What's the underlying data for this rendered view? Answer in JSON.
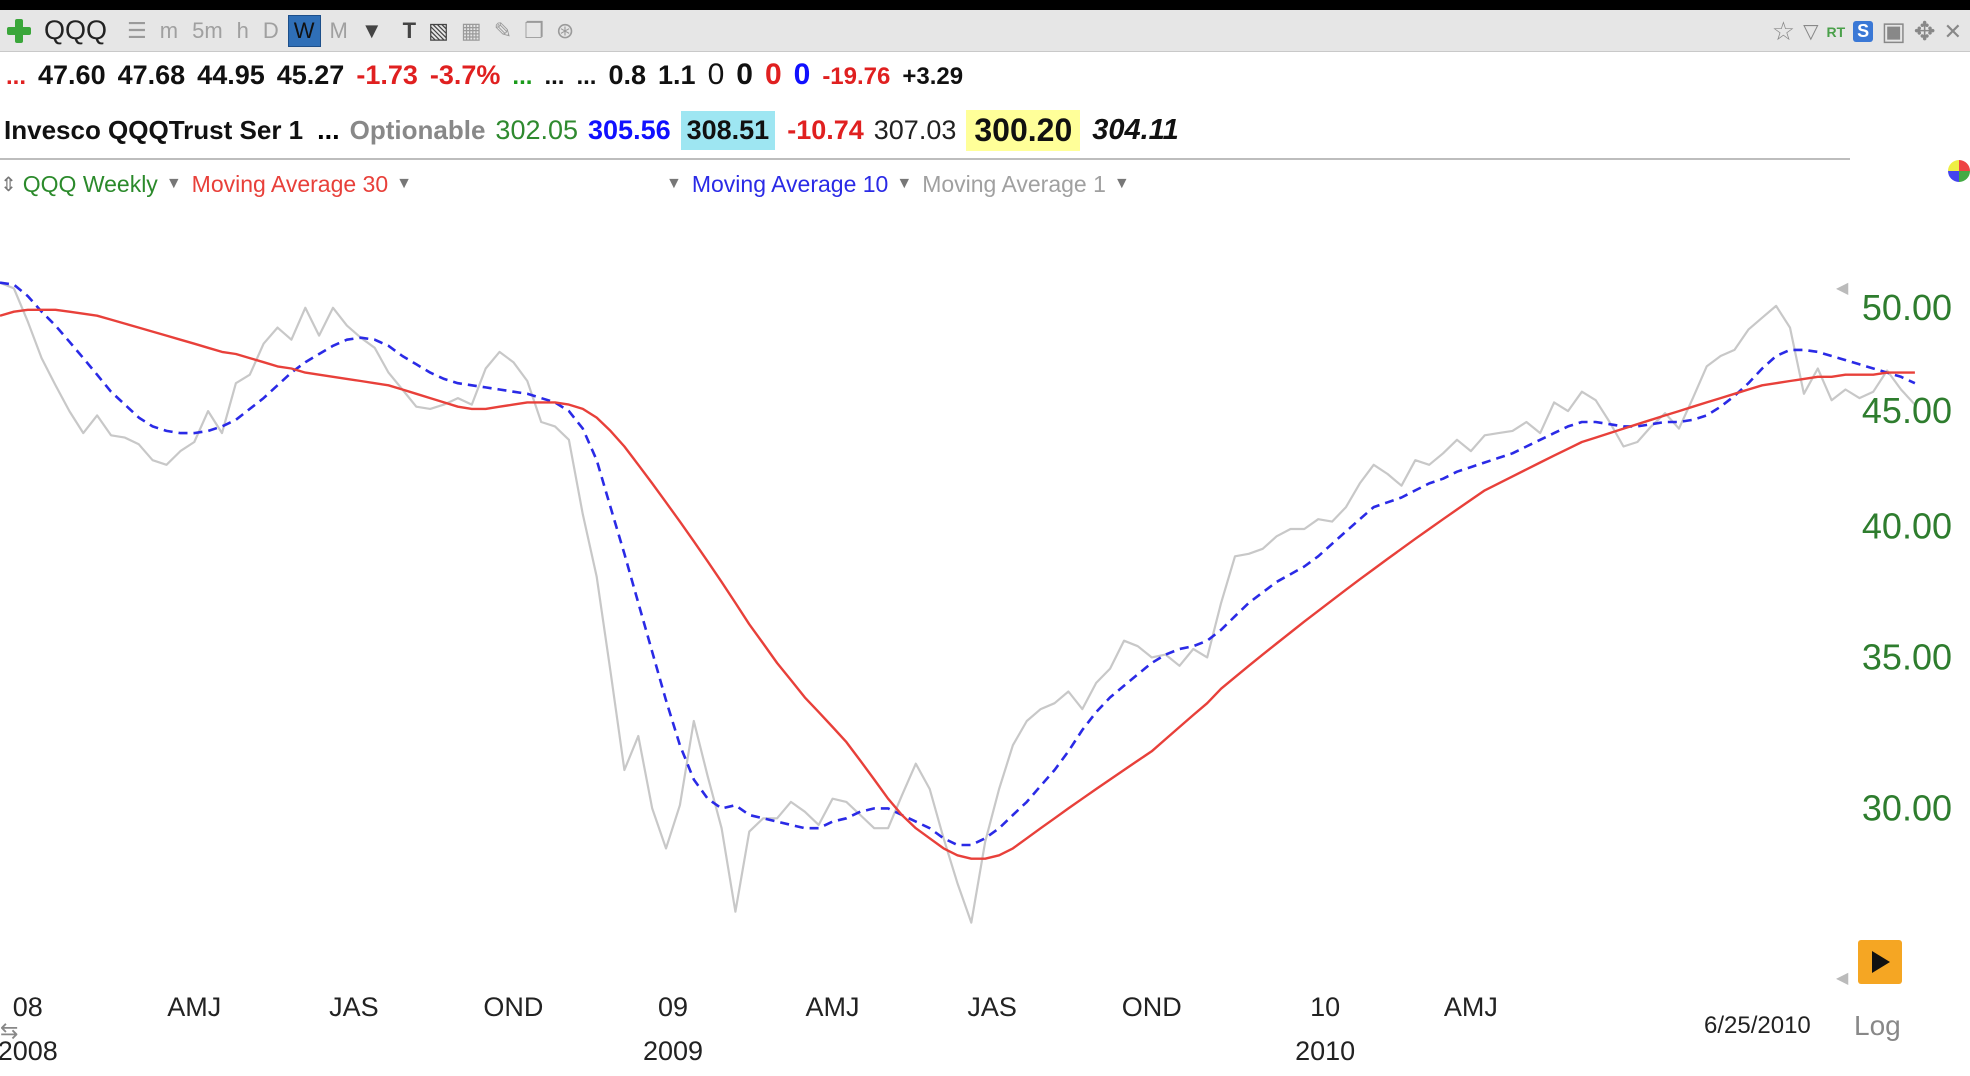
{
  "toolbar": {
    "symbol": "QQQ",
    "timeframes": [
      "m",
      "5m",
      "h",
      "D",
      "W",
      "M"
    ],
    "active_timeframe": "W",
    "icons": [
      "add-icon",
      "list-icon",
      "chevron-down-icon",
      "text-icon",
      "bar-chart-icon",
      "grid-icon",
      "pencil-icon",
      "copy-icon",
      "share-icon",
      "star-icon",
      "filter-icon",
      "save-icon",
      "move-icon",
      "close-icon"
    ],
    "rt_label": "RT",
    "s_badge": "S"
  },
  "quote_line1": {
    "prefix": "...",
    "open": "47.60",
    "high": "47.68",
    "low": "44.95",
    "close": "45.27",
    "change": "-1.73",
    "change_pct": "-3.7%",
    "dots_green": "...",
    "dots1": "...",
    "dots2": "...",
    "v1": "0.8",
    "v2": "1.1",
    "z1": "0",
    "z2": "0",
    "z3": "0",
    "z4": "0",
    "v3": "-19.76",
    "v4": "+3.29"
  },
  "quote_line2": {
    "name": "Invesco QQQTrust Ser 1",
    "dots": "...",
    "optionable": "Optionable",
    "p1": "302.05",
    "p2": "305.56",
    "p3": "308.51",
    "p4": "-10.74",
    "p5": "307.03",
    "p6": "300.20",
    "p7": "304.11"
  },
  "legend": {
    "main": "QQQ Weekly",
    "ma30": "Moving Average 30",
    "ma10": "Moving Average 10",
    "ma1": "Moving Average 1"
  },
  "colors": {
    "price": "#c8c8c8",
    "ma30": "#e8403a",
    "ma10": "#2a2ae6",
    "axis_green": "#2e7d2e",
    "legend_green": "#2b8a2b"
  },
  "chart_data": {
    "type": "line",
    "yscale": "log",
    "ylim": [
      26.5,
      52.5
    ],
    "xlim": [
      0,
      129
    ],
    "yticks": [
      50.0,
      45.0,
      40.0,
      35.0,
      30.0
    ],
    "ytick_labels": [
      "50.00",
      "45.00",
      "40.00",
      "35.00",
      "30.00"
    ],
    "xticks": [
      {
        "x": 2,
        "label": "08"
      },
      {
        "x": 14,
        "label": "AMJ"
      },
      {
        "x": 25.5,
        "label": "JAS"
      },
      {
        "x": 37,
        "label": "OND"
      },
      {
        "x": 48.5,
        "label": "09"
      },
      {
        "x": 60,
        "label": "AMJ"
      },
      {
        "x": 71.5,
        "label": "JAS"
      },
      {
        "x": 83,
        "label": "OND"
      },
      {
        "x": 95.5,
        "label": "10"
      },
      {
        "x": 106,
        "label": "AMJ"
      }
    ],
    "year_labels": [
      {
        "x": 2,
        "label": "2008"
      },
      {
        "x": 48.5,
        "label": "2009"
      },
      {
        "x": 95.5,
        "label": "2010"
      }
    ],
    "date_label": "6/25/2010",
    "series": [
      {
        "name": "Moving Average 1",
        "key": "price",
        "values": [
          51.3,
          51.0,
          49.3,
          47.5,
          46.2,
          45.0,
          44.0,
          44.8,
          43.9,
          43.8,
          43.5,
          42.8,
          42.6,
          43.2,
          43.6,
          45.0,
          44.0,
          46.3,
          46.7,
          48.2,
          49.0,
          48.4,
          50.0,
          48.6,
          50.0,
          49.1,
          48.5,
          48.0,
          46.8,
          46.0,
          45.2,
          45.1,
          45.3,
          45.6,
          45.3,
          47.0,
          47.8,
          47.3,
          46.4,
          44.5,
          44.3,
          43.7,
          40.5,
          38.0,
          34.5,
          31.2,
          32.3,
          30.0,
          28.8,
          30.1,
          32.8,
          31.0,
          29.4,
          27.0,
          29.3,
          29.7,
          29.7,
          30.2,
          29.9,
          29.5,
          30.3,
          30.2,
          29.8,
          29.4,
          29.4,
          30.4,
          31.4,
          30.6,
          29.1,
          27.8,
          26.7,
          29.0,
          30.6,
          32.0,
          32.8,
          33.2,
          33.4,
          33.8,
          33.2,
          34.1,
          34.6,
          35.6,
          35.4,
          35.0,
          35.1,
          34.7,
          35.3,
          35.0,
          37.0,
          38.8,
          38.9,
          39.1,
          39.6,
          39.9,
          39.9,
          40.3,
          40.2,
          40.8,
          41.8,
          42.6,
          42.2,
          41.7,
          42.8,
          42.6,
          43.1,
          43.7,
          43.2,
          43.9,
          44.0,
          44.1,
          44.5,
          44.0,
          45.4,
          45.0,
          45.9,
          45.5,
          44.5,
          43.4,
          43.6,
          44.3,
          44.9,
          44.2,
          45.6,
          47.1,
          47.6,
          47.9,
          48.9,
          49.5,
          50.1,
          49.0,
          45.8,
          47.0,
          45.5,
          46.0,
          45.6,
          45.9,
          46.9,
          46.0,
          45.3
        ],
        "style": "solid"
      },
      {
        "name": "Moving Average 10",
        "key": "ma10",
        "values": [
          51.3,
          51.2,
          50.6,
          49.8,
          49.1,
          48.3,
          47.5,
          46.7,
          45.9,
          45.3,
          44.7,
          44.3,
          44.1,
          44.0,
          44.0,
          44.1,
          44.3,
          44.6,
          45.1,
          45.6,
          46.2,
          46.8,
          47.3,
          47.7,
          48.1,
          48.4,
          48.5,
          48.4,
          48.1,
          47.6,
          47.2,
          46.8,
          46.5,
          46.3,
          46.2,
          46.1,
          46.0,
          45.9,
          45.8,
          45.6,
          45.4,
          45.0,
          44.2,
          42.8,
          40.8,
          38.9,
          37.0,
          35.2,
          33.5,
          32.0,
          30.9,
          30.3,
          30.0,
          30.1,
          29.8,
          29.7,
          29.6,
          29.5,
          29.4,
          29.4,
          29.6,
          29.7,
          29.9,
          30.0,
          30.0,
          29.8,
          29.6,
          29.4,
          29.1,
          28.9,
          28.9,
          29.1,
          29.4,
          29.8,
          30.2,
          30.7,
          31.2,
          31.8,
          32.5,
          33.1,
          33.6,
          34.0,
          34.4,
          34.8,
          35.1,
          35.3,
          35.4,
          35.6,
          36.0,
          36.5,
          37.0,
          37.4,
          37.8,
          38.1,
          38.4,
          38.8,
          39.3,
          39.8,
          40.3,
          40.8,
          41.0,
          41.2,
          41.5,
          41.8,
          42.0,
          42.3,
          42.5,
          42.7,
          42.9,
          43.1,
          43.4,
          43.7,
          44.0,
          44.3,
          44.5,
          44.5,
          44.4,
          44.3,
          44.3,
          44.4,
          44.5,
          44.5,
          44.6,
          44.8,
          45.2,
          45.7,
          46.3,
          47.0,
          47.6,
          47.9,
          47.9,
          47.8,
          47.6,
          47.4,
          47.2,
          47.0,
          46.8,
          46.6,
          46.3
        ],
        "style": "dashed"
      },
      {
        "name": "Moving Average 30",
        "key": "ma30",
        "values": [
          49.6,
          49.8,
          49.9,
          49.9,
          49.9,
          49.8,
          49.7,
          49.6,
          49.4,
          49.2,
          49.0,
          48.8,
          48.6,
          48.4,
          48.2,
          48.0,
          47.8,
          47.7,
          47.5,
          47.3,
          47.1,
          47.0,
          46.8,
          46.7,
          46.6,
          46.5,
          46.4,
          46.3,
          46.2,
          46.0,
          45.8,
          45.6,
          45.4,
          45.2,
          45.1,
          45.1,
          45.2,
          45.3,
          45.4,
          45.4,
          45.4,
          45.3,
          45.1,
          44.7,
          44.1,
          43.4,
          42.6,
          41.8,
          41.0,
          40.2,
          39.4,
          38.6,
          37.8,
          37.0,
          36.2,
          35.5,
          34.8,
          34.2,
          33.6,
          33.1,
          32.6,
          32.1,
          31.5,
          30.9,
          30.3,
          29.8,
          29.4,
          29.1,
          28.8,
          28.6,
          28.5,
          28.5,
          28.6,
          28.8,
          29.1,
          29.4,
          29.7,
          30.0,
          30.3,
          30.6,
          30.9,
          31.2,
          31.5,
          31.8,
          32.2,
          32.6,
          33.0,
          33.4,
          33.9,
          34.3,
          34.7,
          35.1,
          35.5,
          35.9,
          36.3,
          36.7,
          37.1,
          37.5,
          37.9,
          38.3,
          38.7,
          39.1,
          39.5,
          39.9,
          40.3,
          40.7,
          41.1,
          41.5,
          41.8,
          42.1,
          42.4,
          42.7,
          43.0,
          43.3,
          43.6,
          43.8,
          44.0,
          44.2,
          44.4,
          44.6,
          44.8,
          45.0,
          45.2,
          45.4,
          45.6,
          45.8,
          46.0,
          46.2,
          46.3,
          46.4,
          46.5,
          46.6,
          46.6,
          46.7,
          46.7,
          46.7,
          46.8,
          46.8,
          46.8
        ],
        "style": "solid"
      }
    ]
  }
}
